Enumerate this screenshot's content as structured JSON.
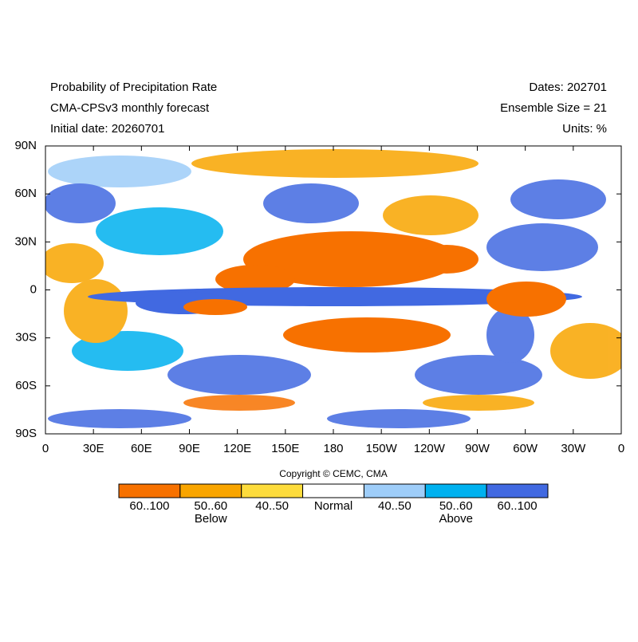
{
  "header": {
    "left": [
      "Probability of Precipitation Rate",
      "CMA-CPSv3 monthly forecast",
      "Initial date: 20260701"
    ],
    "right": [
      "Dates: 202701",
      "Ensemble Size = 21",
      "Units: %"
    ]
  },
  "map": {
    "lat_labels": [
      "90N",
      "60N",
      "30N",
      "0",
      "30S",
      "60S",
      "90S"
    ],
    "lon_labels": [
      "0",
      "30E",
      "60E",
      "90E",
      "120E",
      "150E",
      "180",
      "150W",
      "120W",
      "90W",
      "60W",
      "30W",
      "0"
    ]
  },
  "copyright": "Copyright © CEMC, CMA",
  "legend": {
    "bins": [
      {
        "label": "60..100",
        "color": "#f77100"
      },
      {
        "label": "50..60",
        "color": "#f9a500"
      },
      {
        "label": "40..50",
        "color": "#fddc3c"
      },
      {
        "label": "Normal",
        "color": "#ffffff"
      },
      {
        "label": "40..50",
        "color": "#9ecdf9"
      },
      {
        "label": "50..60",
        "color": "#00b1ef"
      },
      {
        "label": "60..100",
        "color": "#4169e1"
      }
    ],
    "below": "Below",
    "above": "Above"
  }
}
